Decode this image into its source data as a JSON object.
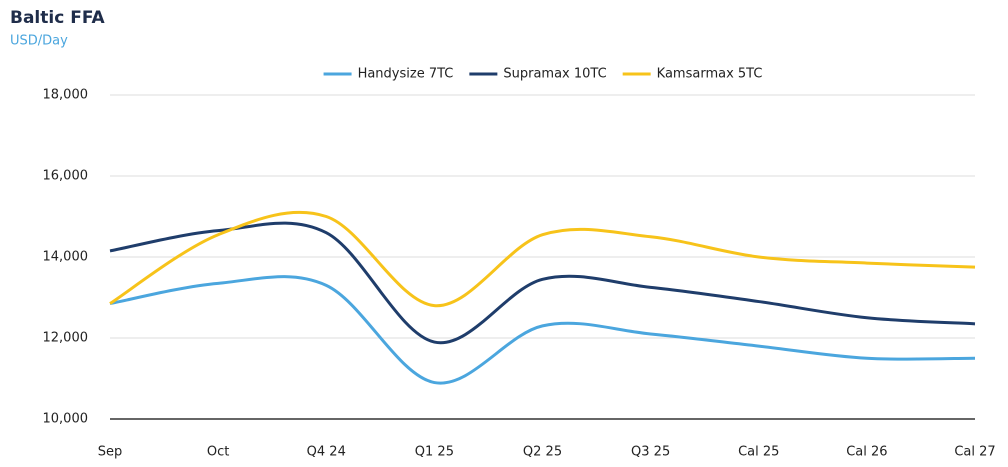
{
  "chart_data": {
    "type": "line",
    "title": "Baltic FFA",
    "subtitle": "USD/Day",
    "categories": [
      "Sep",
      "Oct",
      "Q4 24",
      "Q1 25",
      "Q2 25",
      "Q3 25",
      "Cal 25",
      "Cal 26",
      "Cal 27"
    ],
    "series": [
      {
        "name": "Handysize 7TC",
        "color": "#4ba6de",
        "values": [
          12850,
          13350,
          13300,
          10900,
          12300,
          12100,
          11800,
          11500,
          11500
        ]
      },
      {
        "name": "Supramax 10TC",
        "color": "#1f3d6b",
        "values": [
          14150,
          14650,
          14600,
          11900,
          13450,
          13250,
          12900,
          12500,
          12350
        ]
      },
      {
        "name": "Kamsarmax 5TC",
        "color": "#f7c31a",
        "values": [
          12850,
          14550,
          15000,
          12800,
          14550,
          14500,
          14000,
          13850,
          13750
        ]
      }
    ],
    "ylim": [
      10000,
      18000
    ],
    "yticks": [
      {
        "value": 10000,
        "label": "10,000"
      },
      {
        "value": 12000,
        "label": "12,000"
      },
      {
        "value": 14000,
        "label": "14,000"
      },
      {
        "value": 16000,
        "label": "16,000"
      },
      {
        "value": 18000,
        "label": "18,000"
      }
    ],
    "grid": true,
    "legend": "top"
  }
}
